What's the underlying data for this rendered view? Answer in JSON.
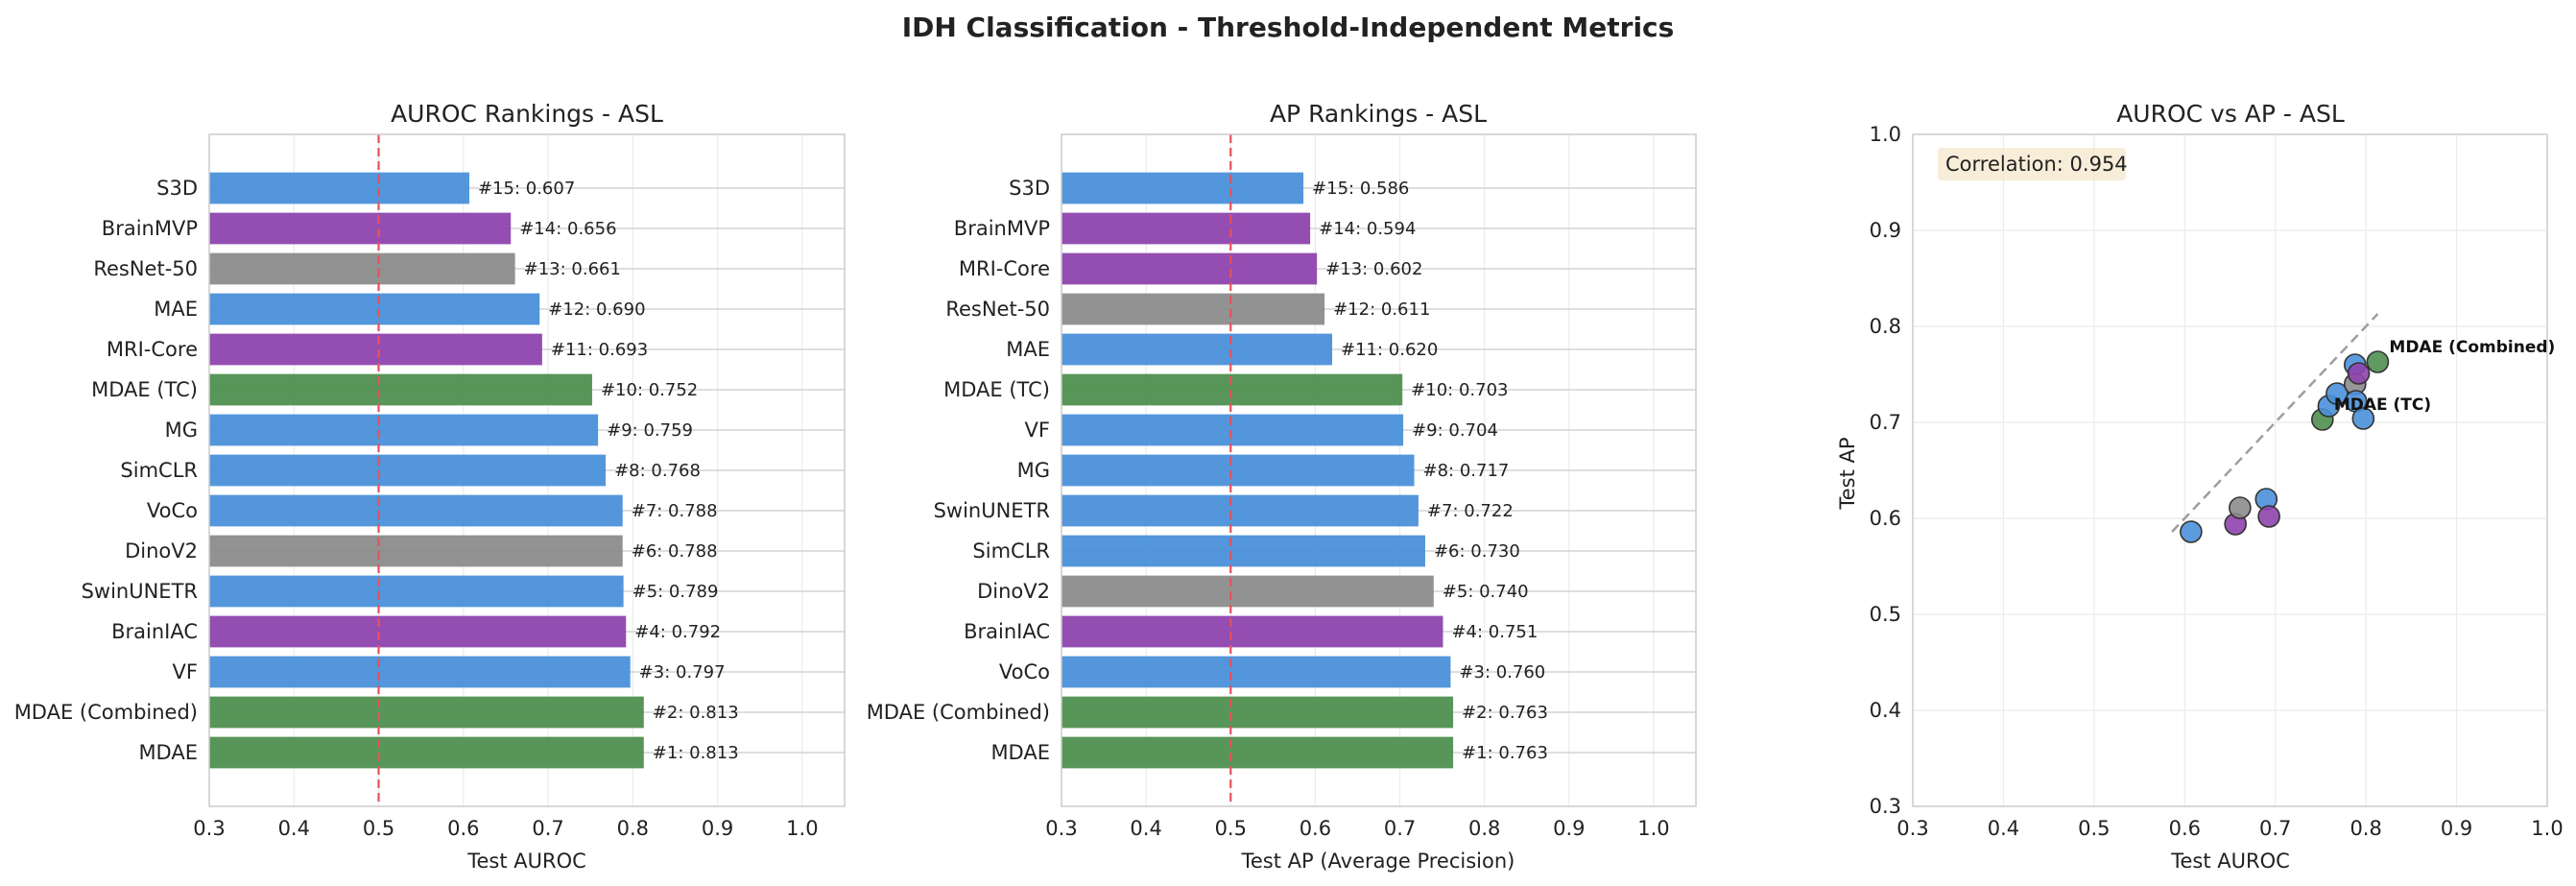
{
  "figure": {
    "title": "IDH Classification - Threshold-Independent Metrics"
  },
  "colors": {
    "blue": "#4a90d9",
    "purple": "#8e44ad",
    "gray": "#8c8c8c",
    "green": "#4f8f4f",
    "threshold": "#e8505b"
  },
  "chart_data": [
    {
      "type": "bar",
      "orientation": "horizontal",
      "title": "AUROC Rankings - ASL",
      "xlabel": "Test AUROC",
      "ylabel": "",
      "xlim": [
        0.3,
        1.05
      ],
      "xticks": [
        "0.3",
        "0.4",
        "0.5",
        "0.6",
        "0.7",
        "0.8",
        "0.9",
        "1.0"
      ],
      "threshold_line": 0.5,
      "categories": [
        "S3D",
        "BrainMVP",
        "ResNet-50",
        "MAE",
        "MRI-Core",
        "MDAE (TC)",
        "MG",
        "SimCLR",
        "VoCo",
        "DinoV2",
        "SwinUNETR",
        "BrainIAC",
        "VF",
        "MDAE (Combined)",
        "MDAE"
      ],
      "values": [
        0.607,
        0.656,
        0.661,
        0.69,
        0.693,
        0.752,
        0.759,
        0.768,
        0.788,
        0.788,
        0.789,
        0.792,
        0.797,
        0.813,
        0.813
      ],
      "labels": [
        "#15: 0.607",
        "#14: 0.656",
        "#13: 0.661",
        "#12: 0.690",
        "#11: 0.693",
        "#10: 0.752",
        "#9: 0.759",
        "#8: 0.768",
        "#7: 0.788",
        "#6: 0.788",
        "#5: 0.789",
        "#4: 0.792",
        "#3: 0.797",
        "#2: 0.813",
        "#1: 0.813"
      ],
      "bar_colors": [
        "blue",
        "purple",
        "gray",
        "blue",
        "purple",
        "green",
        "blue",
        "blue",
        "blue",
        "gray",
        "blue",
        "purple",
        "blue",
        "green",
        "green"
      ]
    },
    {
      "type": "bar",
      "orientation": "horizontal",
      "title": "AP Rankings - ASL",
      "xlabel": "Test AP (Average Precision)",
      "ylabel": "",
      "xlim": [
        0.3,
        1.05
      ],
      "xticks": [
        "0.3",
        "0.4",
        "0.5",
        "0.6",
        "0.7",
        "0.8",
        "0.9",
        "1.0"
      ],
      "threshold_line": 0.5,
      "categories": [
        "S3D",
        "BrainMVP",
        "MRI-Core",
        "ResNet-50",
        "MAE",
        "MDAE (TC)",
        "VF",
        "MG",
        "SwinUNETR",
        "SimCLR",
        "DinoV2",
        "BrainIAC",
        "VoCo",
        "MDAE (Combined)",
        "MDAE"
      ],
      "values": [
        0.586,
        0.594,
        0.602,
        0.611,
        0.62,
        0.703,
        0.704,
        0.717,
        0.722,
        0.73,
        0.74,
        0.751,
        0.76,
        0.763,
        0.763
      ],
      "labels": [
        "#15: 0.586",
        "#14: 0.594",
        "#13: 0.602",
        "#12: 0.611",
        "#11: 0.620",
        "#10: 0.703",
        "#9: 0.704",
        "#8: 0.717",
        "#7: 0.722",
        "#6: 0.730",
        "#5: 0.740",
        "#4: 0.751",
        "#3: 0.760",
        "#2: 0.763",
        "#1: 0.763"
      ],
      "bar_colors": [
        "blue",
        "purple",
        "purple",
        "gray",
        "blue",
        "green",
        "blue",
        "blue",
        "blue",
        "blue",
        "gray",
        "purple",
        "blue",
        "green",
        "green"
      ]
    },
    {
      "type": "scatter",
      "title": "AUROC vs AP - ASL",
      "xlabel": "Test AUROC",
      "ylabel": "Test AP",
      "xlim": [
        0.3,
        1.0
      ],
      "ylim": [
        0.3,
        1.0
      ],
      "xticks": [
        "0.3",
        "0.4",
        "0.5",
        "0.6",
        "0.7",
        "0.8",
        "0.9",
        "1.0"
      ],
      "yticks": [
        "0.3",
        "0.4",
        "0.5",
        "0.6",
        "0.7",
        "0.8",
        "0.9",
        "1.0"
      ],
      "correlation_text": "Correlation: 0.954",
      "diagonal": [
        [
          0.586,
          0.586
        ],
        [
          0.813,
          0.813
        ]
      ],
      "points": [
        {
          "x": 0.607,
          "y": 0.586,
          "color": "blue"
        },
        {
          "x": 0.656,
          "y": 0.594,
          "color": "purple"
        },
        {
          "x": 0.661,
          "y": 0.611,
          "color": "gray"
        },
        {
          "x": 0.69,
          "y": 0.62,
          "color": "blue"
        },
        {
          "x": 0.693,
          "y": 0.602,
          "color": "purple"
        },
        {
          "x": 0.752,
          "y": 0.703,
          "color": "green"
        },
        {
          "x": 0.759,
          "y": 0.717,
          "color": "blue"
        },
        {
          "x": 0.768,
          "y": 0.73,
          "color": "blue"
        },
        {
          "x": 0.788,
          "y": 0.76,
          "color": "blue"
        },
        {
          "x": 0.788,
          "y": 0.74,
          "color": "gray"
        },
        {
          "x": 0.789,
          "y": 0.722,
          "color": "blue"
        },
        {
          "x": 0.792,
          "y": 0.751,
          "color": "purple"
        },
        {
          "x": 0.797,
          "y": 0.704,
          "color": "blue"
        },
        {
          "x": 0.813,
          "y": 0.763,
          "color": "green"
        }
      ],
      "annotations": [
        {
          "text": "MDAE (Combined)",
          "x": 0.813,
          "y": 0.763
        },
        {
          "text": "MDAE (TC)",
          "x": 0.752,
          "y": 0.703
        }
      ]
    }
  ]
}
